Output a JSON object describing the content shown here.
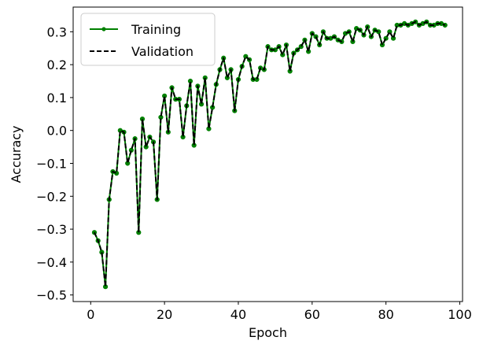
{
  "chart_data": {
    "type": "line",
    "title": "",
    "xlabel": "Epoch",
    "ylabel": "Accuracy",
    "xlim": [
      -4.75,
      100.75
    ],
    "ylim": [
      -0.52,
      0.375
    ],
    "xticks": [
      0,
      20,
      40,
      60,
      80,
      100
    ],
    "yticks": [
      -0.5,
      -0.4,
      -0.3,
      -0.2,
      -0.1,
      0.0,
      0.1,
      0.2,
      0.3
    ],
    "xtick_labels": [
      "0",
      "20",
      "40",
      "60",
      "80",
      "100"
    ],
    "ytick_labels": [
      "−0.5",
      "−0.4",
      "−0.3",
      "−0.2",
      "−0.1",
      "0.0",
      "0.1",
      "0.2",
      "0.3"
    ],
    "grid": false,
    "legend_position": "upper left",
    "series": [
      {
        "name": "Training",
        "color": "#008000",
        "style": "solid line with circle markers",
        "x": [
          1,
          2,
          3,
          4,
          5,
          6,
          7,
          8,
          9,
          10,
          11,
          12,
          13,
          14,
          15,
          16,
          17,
          18,
          19,
          20,
          21,
          22,
          23,
          24,
          25,
          26,
          27,
          28,
          29,
          30,
          31,
          32,
          33,
          34,
          35,
          36,
          37,
          38,
          39,
          40,
          41,
          42,
          43,
          44,
          45,
          46,
          47,
          48,
          49,
          50,
          51,
          52,
          53,
          54,
          55,
          56,
          57,
          58,
          59,
          60,
          61,
          62,
          63,
          64,
          65,
          66,
          67,
          68,
          69,
          70,
          71,
          72,
          73,
          74,
          75,
          76,
          77,
          78,
          79,
          80,
          81,
          82,
          83,
          84,
          85,
          86,
          87,
          88,
          89,
          90,
          91,
          92,
          93,
          94,
          95,
          96
        ],
        "values": [
          -0.31,
          -0.335,
          -0.37,
          -0.475,
          -0.21,
          -0.125,
          -0.13,
          0.0,
          -0.005,
          -0.1,
          -0.06,
          -0.025,
          -0.31,
          0.035,
          -0.05,
          -0.02,
          -0.035,
          -0.21,
          0.04,
          0.105,
          -0.005,
          0.13,
          0.095,
          0.095,
          -0.02,
          0.075,
          0.15,
          -0.045,
          0.135,
          0.08,
          0.16,
          0.005,
          0.07,
          0.14,
          0.185,
          0.22,
          0.16,
          0.185,
          0.06,
          0.155,
          0.195,
          0.225,
          0.215,
          0.155,
          0.155,
          0.19,
          0.185,
          0.255,
          0.245,
          0.245,
          0.255,
          0.23,
          0.26,
          0.18,
          0.235,
          0.245,
          0.255,
          0.275,
          0.24,
          0.295,
          0.285,
          0.26,
          0.3,
          0.28,
          0.28,
          0.285,
          0.275,
          0.27,
          0.295,
          0.3,
          0.27,
          0.31,
          0.305,
          0.29,
          0.315,
          0.285,
          0.305,
          0.3,
          0.26,
          0.28,
          0.3,
          0.28,
          0.32,
          0.32,
          0.325,
          0.32,
          0.325,
          0.33,
          0.32,
          0.325,
          0.33,
          0.32,
          0.32,
          0.325,
          0.325,
          0.32
        ]
      },
      {
        "name": "Validation",
        "color": "#000000",
        "style": "dashed line",
        "x": [
          1,
          2,
          3,
          4,
          5,
          6,
          7,
          8,
          9,
          10,
          11,
          12,
          13,
          14,
          15,
          16,
          17,
          18,
          19,
          20,
          21,
          22,
          23,
          24,
          25,
          26,
          27,
          28,
          29,
          30,
          31,
          32,
          33,
          34,
          35,
          36,
          37,
          38,
          39,
          40,
          41,
          42,
          43,
          44,
          45,
          46,
          47,
          48,
          49,
          50,
          51,
          52,
          53,
          54,
          55,
          56,
          57,
          58,
          59,
          60,
          61,
          62,
          63,
          64,
          65,
          66,
          67,
          68,
          69,
          70,
          71,
          72,
          73,
          74,
          75,
          76,
          77,
          78,
          79,
          80,
          81,
          82,
          83,
          84,
          85,
          86,
          87,
          88,
          89,
          90,
          91,
          92,
          93,
          94,
          95,
          96
        ],
        "values": [
          -0.31,
          -0.335,
          -0.37,
          -0.475,
          -0.21,
          -0.125,
          -0.13,
          0.0,
          -0.005,
          -0.1,
          -0.06,
          -0.025,
          -0.31,
          0.035,
          -0.05,
          -0.02,
          -0.035,
          -0.21,
          0.04,
          0.105,
          -0.005,
          0.13,
          0.095,
          0.095,
          -0.02,
          0.075,
          0.15,
          -0.045,
          0.135,
          0.08,
          0.16,
          0.005,
          0.07,
          0.14,
          0.185,
          0.22,
          0.16,
          0.185,
          0.06,
          0.155,
          0.195,
          0.225,
          0.215,
          0.155,
          0.155,
          0.19,
          0.185,
          0.255,
          0.245,
          0.245,
          0.255,
          0.23,
          0.26,
          0.18,
          0.235,
          0.245,
          0.255,
          0.275,
          0.24,
          0.295,
          0.285,
          0.26,
          0.3,
          0.28,
          0.28,
          0.285,
          0.275,
          0.27,
          0.295,
          0.3,
          0.27,
          0.31,
          0.305,
          0.29,
          0.315,
          0.285,
          0.305,
          0.3,
          0.26,
          0.28,
          0.3,
          0.28,
          0.32,
          0.32,
          0.325,
          0.32,
          0.325,
          0.33,
          0.32,
          0.325,
          0.33,
          0.32,
          0.32,
          0.325,
          0.325,
          0.32
        ]
      }
    ]
  }
}
